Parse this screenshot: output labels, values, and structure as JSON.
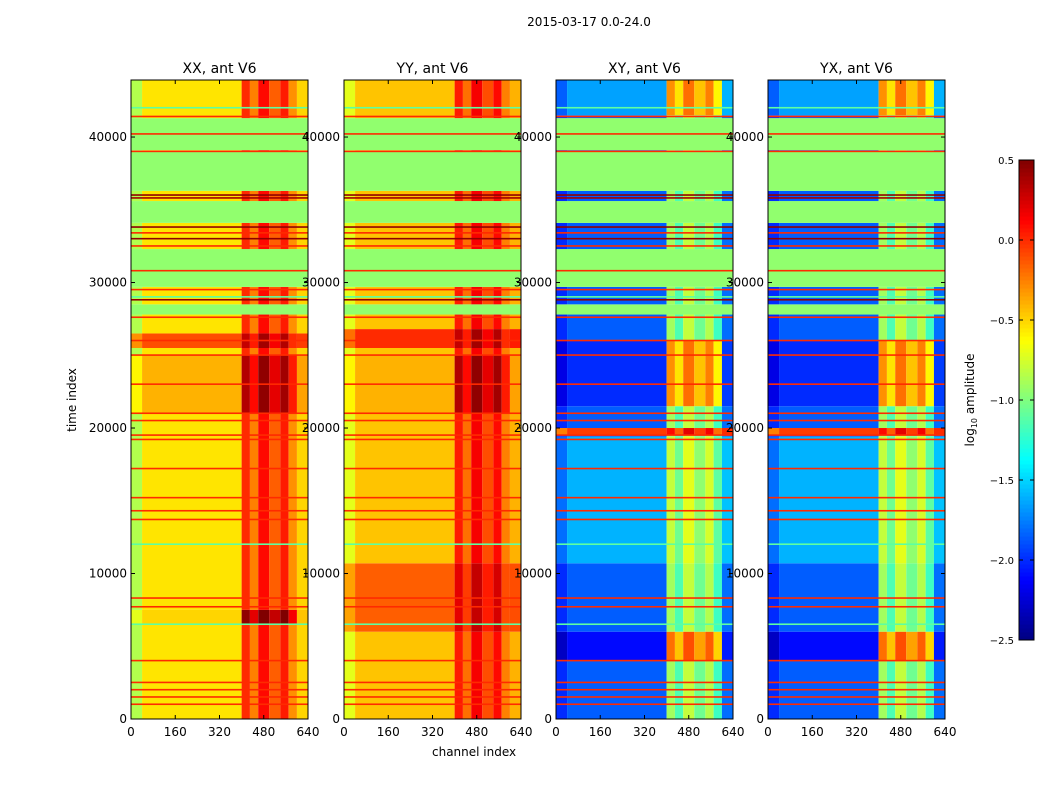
{
  "chart_data": {
    "type": "heatmap",
    "suptitle": "2015-03-17 0.0-24.0",
    "xlabel": "channel index",
    "ylabel": "time index",
    "xlim": [
      0,
      640
    ],
    "ylim": [
      0,
      43920
    ],
    "xticks": [
      "0",
      "160",
      "320",
      "480",
      "640"
    ],
    "yticks": [
      "0",
      "10000",
      "20000",
      "30000",
      "40000"
    ],
    "ytick_values": [
      0,
      10000,
      20000,
      30000,
      40000
    ],
    "xtick_values": [
      0,
      160,
      320,
      480,
      640
    ],
    "colorbar": {
      "label_main": "log",
      "label_sub": "10",
      "label_rest": " amplitude",
      "range": [
        -2.5,
        0.5
      ],
      "ticks": [
        "0.5",
        "0.0",
        "−0.5",
        "−1.0",
        "−1.5",
        "−2.0",
        "−2.5"
      ],
      "tick_values": [
        0.5,
        0.0,
        -0.5,
        -1.0,
        -1.5,
        -2.0,
        -2.5
      ],
      "colormap": "jet"
    },
    "rfi_channel_range": [
      400,
      600
    ],
    "flagged_blocks": [
      [
        39100,
        41300,
        -0.95
      ],
      [
        36300,
        39000,
        -0.95
      ],
      [
        34100,
        35600,
        -0.95
      ],
      [
        29700,
        32300,
        -0.95
      ],
      [
        27800,
        28500,
        -0.95
      ]
    ],
    "flag_lines": [
      [
        41400,
        0.0
      ],
      [
        40200,
        0.0
      ],
      [
        39000,
        0.0
      ],
      [
        36000,
        0.45
      ],
      [
        35800,
        0.4
      ],
      [
        33800,
        0.45
      ],
      [
        33400,
        0.0
      ],
      [
        33000,
        0.45
      ],
      [
        32500,
        0.0
      ],
      [
        30800,
        0.0
      ],
      [
        29500,
        0.0
      ],
      [
        28800,
        0.45
      ],
      [
        27600,
        0.0
      ],
      [
        26000,
        0.0
      ],
      [
        25000,
        0.0
      ],
      [
        23000,
        0.0
      ],
      [
        21000,
        0.0
      ],
      [
        20500,
        0.0
      ],
      [
        19500,
        0.0
      ],
      [
        19200,
        0.0
      ],
      [
        17200,
        0.0
      ],
      [
        15200,
        0.0
      ],
      [
        14300,
        0.0
      ],
      [
        13700,
        0.0
      ],
      [
        8300,
        0.0
      ],
      [
        7700,
        0.0
      ],
      [
        4000,
        0.0
      ],
      [
        2500,
        0.0
      ],
      [
        2000,
        0.0
      ],
      [
        1500,
        0.0
      ],
      [
        1000,
        0.0
      ],
      [
        42000,
        -1.1
      ],
      [
        29000,
        -1.1
      ],
      [
        12000,
        -1.1
      ],
      [
        6500,
        -1.1
      ]
    ],
    "panels": [
      {
        "title": "XX, ant V6",
        "base": -0.55,
        "edge": -0.85,
        "rfi": -0.1,
        "bands": [
          [
            25500,
            26500,
            -0.1,
            0.2
          ],
          [
            21000,
            25000,
            -0.4,
            0.25
          ],
          [
            6500,
            7500,
            -0.5,
            0.35
          ]
        ]
      },
      {
        "title": "YY, ant V6",
        "base": -0.45,
        "edge": -0.7,
        "rfi": -0.05,
        "bands": [
          [
            6000,
            10700,
            -0.15,
            0.1
          ],
          [
            25500,
            26800,
            0.0,
            0.2
          ],
          [
            21000,
            25000,
            -0.4,
            0.25
          ]
        ]
      },
      {
        "title": "XY, ant V6",
        "base": -1.85,
        "edge": -2.0,
        "rfi": -1.0,
        "bands": [
          [
            4000,
            6000,
            -2.1,
            -0.3
          ],
          [
            10700,
            19400,
            -1.6,
            -0.9
          ],
          [
            19500,
            20000,
            -0.05,
            0.0
          ],
          [
            21500,
            26000,
            -2.0,
            -0.4
          ],
          [
            41500,
            43920,
            -1.65,
            -0.4
          ]
        ]
      },
      {
        "title": "YX, ant V6",
        "base": -1.85,
        "edge": -2.0,
        "rfi": -1.0,
        "bands": [
          [
            4000,
            6000,
            -2.1,
            -0.3
          ],
          [
            10700,
            19400,
            -1.6,
            -0.9
          ],
          [
            19500,
            20000,
            -0.05,
            0.0
          ],
          [
            21500,
            26000,
            -2.0,
            -0.4
          ],
          [
            41500,
            43920,
            -1.65,
            -0.4
          ]
        ]
      }
    ]
  }
}
